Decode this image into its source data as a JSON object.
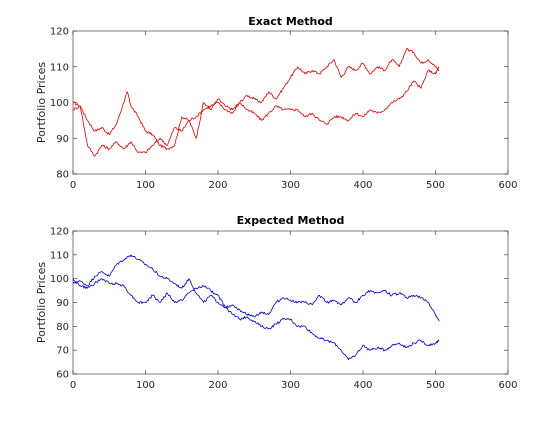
{
  "chart_data": [
    {
      "type": "line",
      "title": "Exact Method",
      "xlabel": "",
      "ylabel": "Portfolio Prices",
      "xlim": [
        0,
        600
      ],
      "ylim": [
        80,
        120
      ],
      "xticks": [
        0,
        100,
        200,
        300,
        400,
        500,
        600
      ],
      "yticks": [
        80,
        90,
        100,
        110,
        120
      ],
      "grid": false,
      "color": "#e00000",
      "series": [
        {
          "x": [
            0,
            10,
            20,
            30,
            40,
            50,
            60,
            70,
            75,
            80,
            90,
            100,
            110,
            120,
            130,
            140,
            150,
            160,
            170,
            180,
            190,
            200,
            210,
            220,
            230,
            240,
            250,
            260,
            270,
            280,
            290,
            300,
            310,
            320,
            330,
            340,
            350,
            360,
            370,
            380,
            390,
            400,
            410,
            420,
            430,
            440,
            450,
            460,
            470,
            480,
            490,
            500,
            505
          ],
          "y": [
            100,
            99,
            95,
            92,
            93,
            91,
            94,
            100,
            103,
            99,
            96,
            92,
            91,
            88,
            87,
            88,
            96,
            95,
            90,
            100,
            98,
            101,
            99,
            98,
            100,
            102,
            101,
            100,
            103,
            101,
            104,
            107,
            110,
            108,
            109,
            108,
            110,
            112,
            107,
            110,
            109,
            111,
            108,
            110,
            109,
            112,
            110,
            115,
            114,
            111,
            112,
            110,
            109
          ]
        },
        {
          "x": [
            0,
            10,
            20,
            30,
            40,
            50,
            60,
            70,
            80,
            90,
            100,
            110,
            120,
            130,
            140,
            150,
            160,
            170,
            180,
            190,
            200,
            210,
            220,
            230,
            240,
            250,
            260,
            270,
            280,
            290,
            300,
            310,
            320,
            330,
            340,
            350,
            360,
            370,
            380,
            390,
            400,
            410,
            420,
            430,
            440,
            450,
            460,
            470,
            480,
            490,
            500,
            505
          ],
          "y": [
            98,
            99,
            88,
            85,
            88,
            87,
            89,
            87,
            89,
            86,
            86,
            88,
            90,
            88,
            93,
            92,
            95,
            96,
            98,
            99,
            100,
            98,
            97,
            100,
            98,
            97,
            95,
            97,
            99,
            98,
            98,
            98,
            96,
            97,
            95,
            94,
            96,
            96,
            95,
            97,
            96,
            98,
            97,
            98,
            100,
            101,
            103,
            106,
            104,
            109,
            108,
            110
          ]
        }
      ]
    },
    {
      "type": "line",
      "title": "Expected Method",
      "xlabel": "",
      "ylabel": "Portfolio Prices",
      "xlim": [
        0,
        600
      ],
      "ylim": [
        60,
        120
      ],
      "xticks": [
        0,
        100,
        200,
        300,
        400,
        500,
        600
      ],
      "yticks": [
        60,
        70,
        80,
        90,
        100,
        110,
        120
      ],
      "grid": false,
      "color": "#0000c8",
      "series": [
        {
          "x": [
            0,
            10,
            20,
            30,
            40,
            50,
            60,
            70,
            80,
            90,
            100,
            110,
            120,
            130,
            140,
            150,
            160,
            170,
            180,
            190,
            200,
            210,
            220,
            230,
            240,
            250,
            260,
            270,
            280,
            290,
            300,
            310,
            320,
            330,
            340,
            350,
            360,
            370,
            380,
            390,
            400,
            410,
            420,
            430,
            440,
            450,
            460,
            470,
            480,
            490,
            500,
            505
          ],
          "y": [
            98,
            99,
            97,
            101,
            103,
            101,
            106,
            108,
            110,
            108,
            106,
            104,
            101,
            100,
            98,
            96,
            100,
            94,
            90,
            93,
            90,
            88,
            85,
            83,
            84,
            82,
            80,
            79,
            81,
            83,
            83,
            80,
            80,
            77,
            75,
            74,
            73,
            70,
            66,
            68,
            72,
            70,
            71,
            70,
            72,
            73,
            71,
            73,
            74,
            72,
            73,
            74
          ]
        },
        {
          "x": [
            0,
            10,
            20,
            30,
            40,
            50,
            60,
            70,
            80,
            90,
            100,
            110,
            120,
            130,
            140,
            150,
            160,
            170,
            180,
            190,
            200,
            210,
            220,
            230,
            240,
            250,
            260,
            270,
            280,
            290,
            300,
            310,
            320,
            330,
            340,
            350,
            360,
            370,
            380,
            390,
            400,
            410,
            420,
            430,
            440,
            450,
            460,
            470,
            480,
            490,
            500,
            505
          ],
          "y": [
            100,
            97,
            96,
            98,
            100,
            98,
            98,
            97,
            93,
            90,
            90,
            93,
            90,
            94,
            90,
            91,
            94,
            96,
            97,
            95,
            93,
            88,
            89,
            87,
            85,
            84,
            86,
            85,
            90,
            92,
            91,
            90,
            90,
            89,
            93,
            90,
            91,
            89,
            92,
            90,
            93,
            95,
            94,
            95,
            93,
            94,
            92,
            93,
            92,
            90,
            85,
            82
          ]
        }
      ]
    }
  ]
}
